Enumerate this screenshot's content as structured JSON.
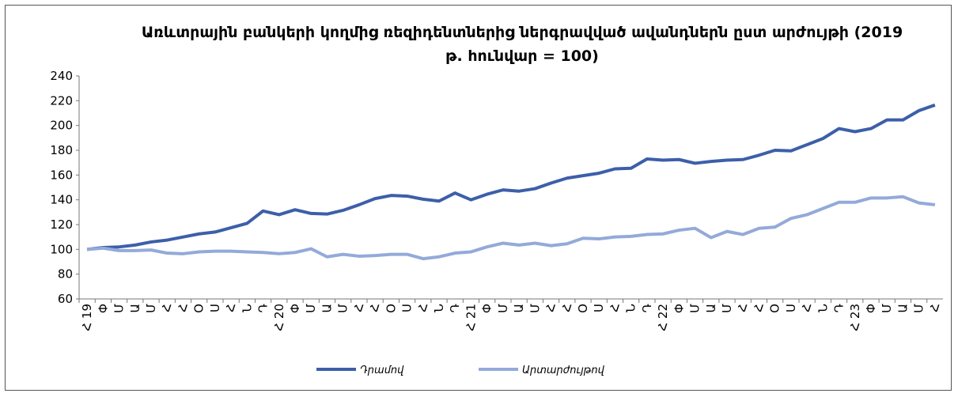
{
  "chart_data": {
    "type": "line",
    "title": "Առևտրային բանկերի կողմից ռեզիդենտներից ներգրավված ավանդներն ըստ արժույթի (2019 թ. հունվար = 100)",
    "categories": [
      "Հ 19",
      "Փ",
      "Մ",
      "Ա",
      "Մ",
      "Հ",
      "Հ",
      "Օ",
      "Ս",
      "Հ",
      "Ն",
      "Դ",
      "Հ 20",
      "Փ",
      "Մ",
      "Ա",
      "Մ",
      "Հ",
      "Հ",
      "Օ",
      "Ս",
      "Հ",
      "Ն",
      "Դ",
      "Հ 21",
      "Փ",
      "Մ",
      "Ա",
      "Մ",
      "Հ",
      "Հ",
      "Օ",
      "Ս",
      "Հ",
      "Ն",
      "Դ",
      "Հ 22",
      "Փ",
      "Մ",
      "Ա",
      "Մ",
      "Հ",
      "Հ",
      "Օ",
      "Ս",
      "Հ",
      "Ն",
      "Դ",
      "Հ 23",
      "Փ",
      "Մ",
      "Ա",
      "Մ",
      "Հ"
    ],
    "series": [
      {
        "name": "Դրամով",
        "color": "#3d5fa9",
        "values": [
          100,
          101.5,
          102,
          103.5,
          106,
          107.5,
          110,
          112.5,
          114,
          117.5,
          121,
          131,
          128,
          132,
          129,
          128.5,
          131.5,
          136,
          141,
          143.5,
          143,
          140.5,
          139,
          145.5,
          140,
          144.5,
          148,
          147,
          149,
          153.5,
          157.5,
          159.5,
          161.5,
          165,
          165.5,
          173,
          172,
          172.5,
          169.5,
          171,
          172,
          172.5,
          176,
          180,
          179.5,
          184.5,
          189.5,
          197.5,
          195,
          197.5,
          204.5,
          204.5,
          212,
          216.5
        ]
      },
      {
        "name": "Արտարժույթով",
        "color": "#93aad9",
        "values": [
          100,
          101,
          99,
          99,
          99.5,
          97,
          96.5,
          98,
          98.5,
          98.5,
          98,
          97.5,
          96.5,
          97.5,
          100.5,
          94,
          96,
          94.5,
          95,
          96,
          96,
          92.5,
          94,
          97,
          98,
          102,
          105,
          103.5,
          105,
          103,
          104.5,
          109,
          108.5,
          110,
          110.5,
          112,
          112.5,
          115.5,
          117,
          109.5,
          114.5,
          112,
          117,
          118,
          125,
          128,
          133,
          138,
          138,
          141.5,
          141.5,
          142.5,
          137.5,
          136
        ]
      }
    ],
    "ylim": [
      60,
      240
    ],
    "yticks": [
      60,
      80,
      100,
      120,
      140,
      160,
      180,
      200,
      220,
      240
    ],
    "grid": false,
    "legend": "bottom"
  }
}
